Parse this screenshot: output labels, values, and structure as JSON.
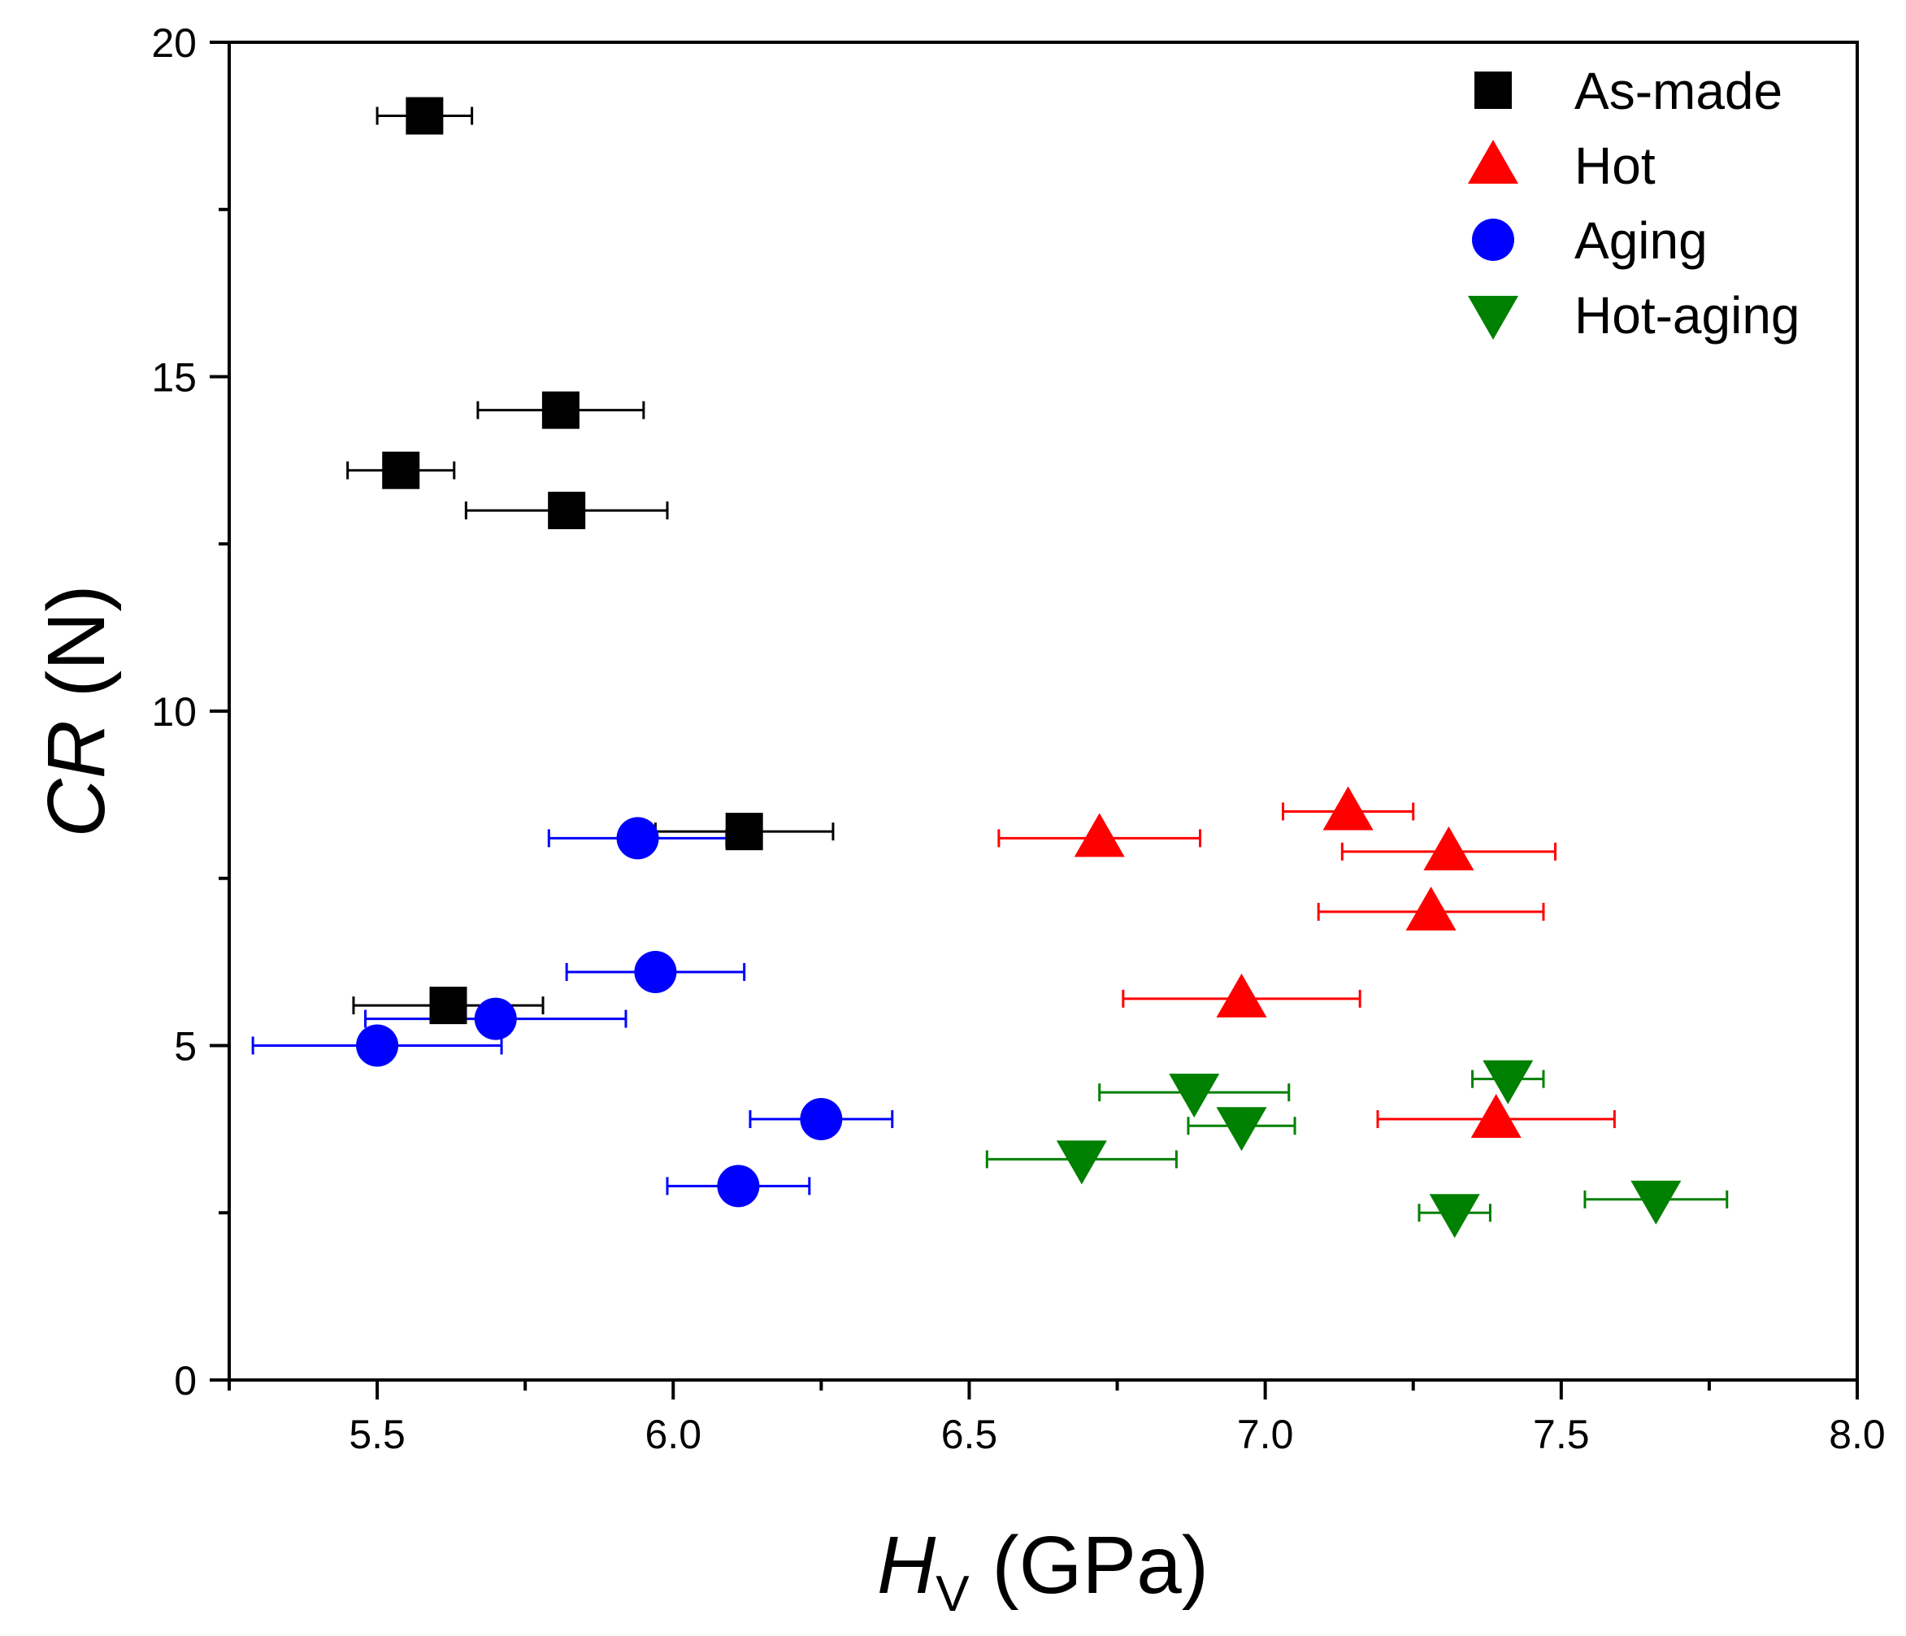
{
  "chart_data": {
    "type": "scatter",
    "xlabel": {
      "main": "H",
      "sub": "V",
      "unit": " (GPa)"
    },
    "ylabel": {
      "main": "CR",
      "unit": " (N)"
    },
    "xlim": [
      5.25,
      8.0
    ],
    "ylim": [
      0,
      20
    ],
    "x_ticks": [
      "5.5",
      "6.0",
      "6.5",
      "7.0",
      "7.5",
      "8.0"
    ],
    "y_ticks": [
      "0",
      "5",
      "10",
      "15",
      "20"
    ],
    "grid": false,
    "legend_position": "top-right",
    "series": [
      {
        "name": "As-made",
        "marker": "square",
        "color": "#000000",
        "points": [
          {
            "x": 5.58,
            "y": 18.9,
            "xerr": 0.08
          },
          {
            "x": 5.81,
            "y": 14.5,
            "xerr": 0.14
          },
          {
            "x": 5.54,
            "y": 13.6,
            "xerr": 0.09
          },
          {
            "x": 5.82,
            "y": 13.0,
            "xerr": 0.17
          },
          {
            "x": 6.12,
            "y": 8.2,
            "xerr": 0.15
          },
          {
            "x": 5.62,
            "y": 5.6,
            "xerr": 0.16
          }
        ]
      },
      {
        "name": "Hot",
        "marker": "triangle-up",
        "color": "#ff0000",
        "points": [
          {
            "x": 7.14,
            "y": 8.5,
            "xerr": 0.11
          },
          {
            "x": 6.72,
            "y": 8.1,
            "xerr": 0.17
          },
          {
            "x": 7.31,
            "y": 7.9,
            "xerr": 0.18
          },
          {
            "x": 7.28,
            "y": 7.0,
            "xerr": 0.19
          },
          {
            "x": 6.96,
            "y": 5.7,
            "xerr": 0.2
          },
          {
            "x": 7.39,
            "y": 3.9,
            "xerr": 0.2
          }
        ]
      },
      {
        "name": "Aging",
        "marker": "circle",
        "color": "#0000ff",
        "points": [
          {
            "x": 5.94,
            "y": 8.1,
            "xerr": 0.15
          },
          {
            "x": 5.97,
            "y": 6.1,
            "xerr": 0.15
          },
          {
            "x": 5.7,
            "y": 5.4,
            "xerr": 0.22
          },
          {
            "x": 5.5,
            "y": 5.0,
            "xerr": 0.21
          },
          {
            "x": 6.25,
            "y": 3.9,
            "xerr": 0.12
          },
          {
            "x": 6.11,
            "y": 2.9,
            "xerr": 0.12
          }
        ]
      },
      {
        "name": "Hot-aging",
        "marker": "triangle-down",
        "color": "#008000",
        "points": [
          {
            "x": 7.41,
            "y": 4.5,
            "xerr": 0.06
          },
          {
            "x": 6.88,
            "y": 4.3,
            "xerr": 0.16
          },
          {
            "x": 6.96,
            "y": 3.8,
            "xerr": 0.09
          },
          {
            "x": 6.69,
            "y": 3.3,
            "xerr": 0.16
          },
          {
            "x": 7.66,
            "y": 2.7,
            "xerr": 0.12
          },
          {
            "x": 7.32,
            "y": 2.5,
            "xerr": 0.06
          }
        ]
      }
    ]
  }
}
